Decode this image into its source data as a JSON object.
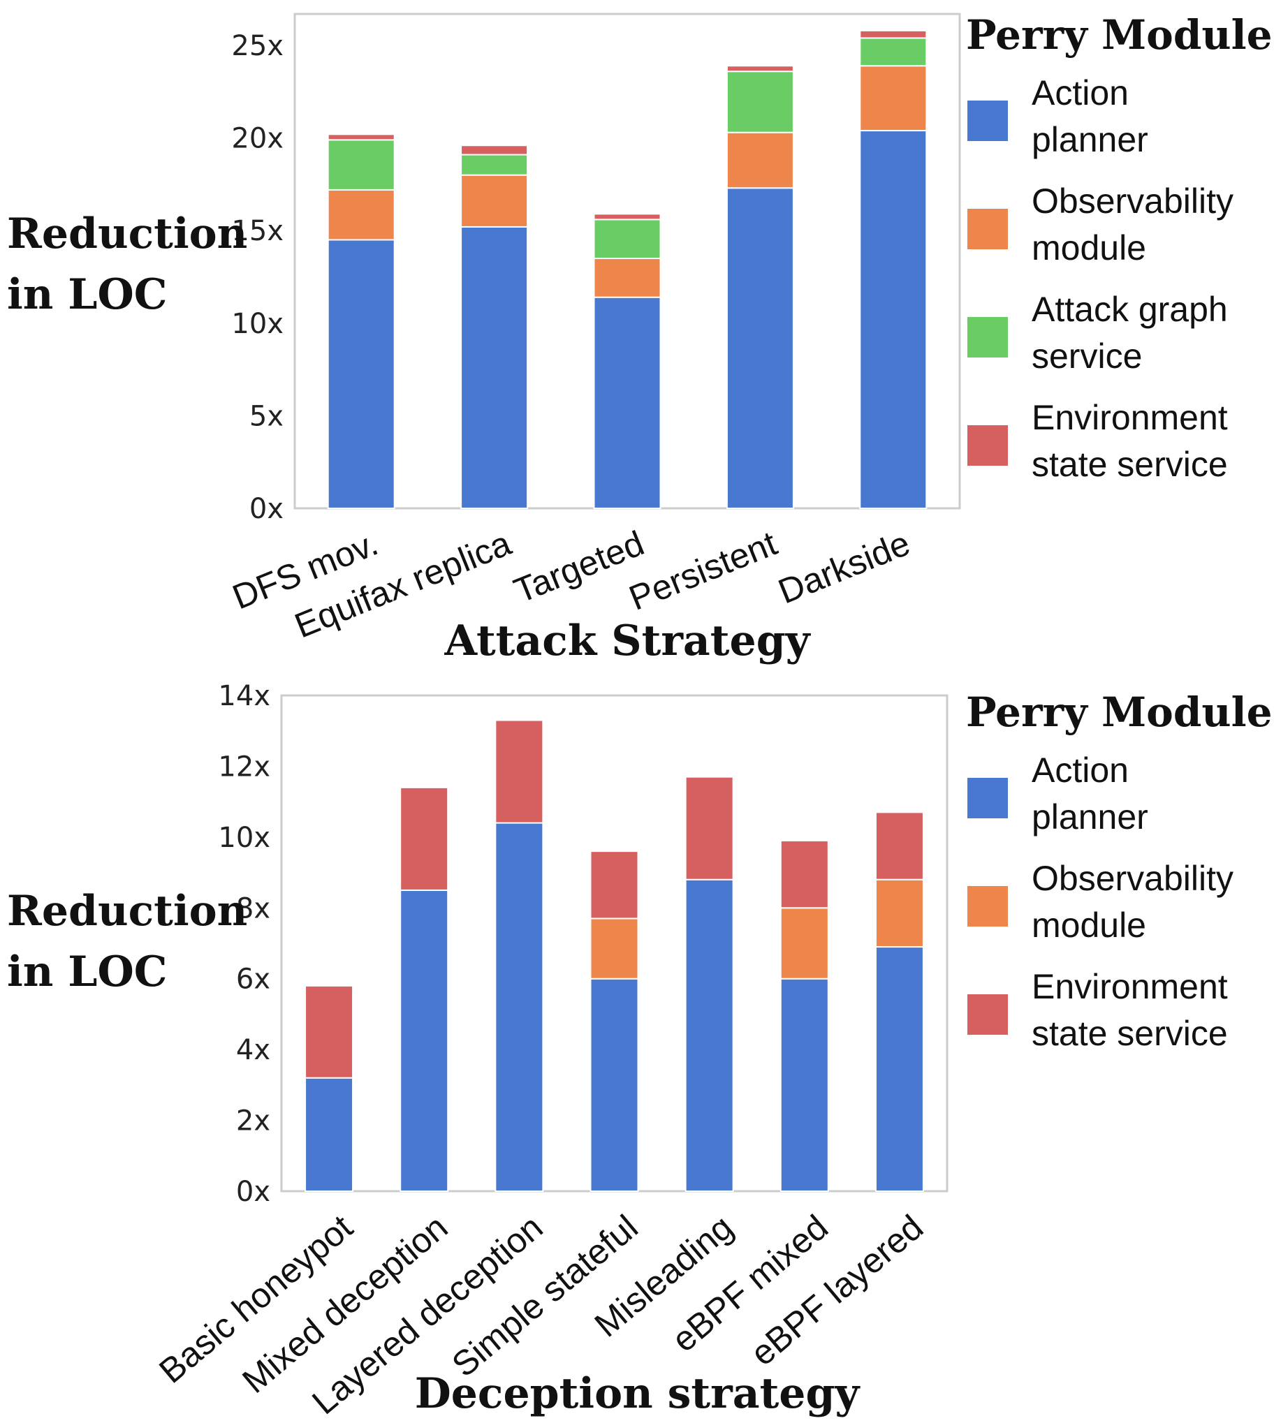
{
  "chart_data": [
    {
      "type": "bar",
      "stacked": true,
      "categories": [
        "DFS mov.",
        "Equifax replica",
        "Targeted",
        "Persistent",
        "Darkside"
      ],
      "series": [
        {
          "name": "Action planner",
          "color": "#4878cf",
          "values": [
            14.5,
            15.2,
            11.4,
            17.3,
            20.4
          ]
        },
        {
          "name": "Observability module",
          "color": "#ee854a",
          "values": [
            2.7,
            2.8,
            2.1,
            3.0,
            3.5
          ]
        },
        {
          "name": "Attack graph service",
          "color": "#6acc64",
          "values": [
            2.7,
            1.1,
            2.1,
            3.3,
            1.5
          ]
        },
        {
          "name": "Environment state service",
          "color": "#d65f5f",
          "values": [
            0.3,
            0.5,
            0.3,
            0.3,
            0.4
          ]
        }
      ],
      "yticks": [
        "0x",
        "5x",
        "10x",
        "15x",
        "20x",
        "25x"
      ],
      "ylim": [
        0,
        26.7
      ],
      "ylabel_lines": [
        "Reduction",
        "in LOC"
      ],
      "xlabel": "Attack Strategy",
      "legend_title": "Perry Module",
      "legend_items": [
        {
          "lines": [
            "Action",
            "planner"
          ],
          "color": "#4878cf"
        },
        {
          "lines": [
            "Observability",
            "module"
          ],
          "color": "#ee854a"
        },
        {
          "lines": [
            "Attack graph",
            "service"
          ],
          "color": "#6acc64"
        },
        {
          "lines": [
            "Environment",
            "state service"
          ],
          "color": "#d65f5f"
        }
      ],
      "legend_position": "right"
    },
    {
      "type": "bar",
      "stacked": true,
      "categories": [
        "Basic honeypot",
        "Mixed deception",
        "Layered deception",
        "Simple stateful",
        "Misleading",
        "eBPF mixed",
        "eBPF layered"
      ],
      "series": [
        {
          "name": "Action planner",
          "color": "#4878cf",
          "values": [
            3.2,
            8.5,
            10.4,
            6.0,
            8.8,
            6.0,
            6.9
          ]
        },
        {
          "name": "Observability module",
          "color": "#ee854a",
          "values": [
            0,
            0,
            0,
            1.7,
            0,
            2.0,
            1.9
          ]
        },
        {
          "name": "Environment state service",
          "color": "#d65f5f",
          "values": [
            2.6,
            2.9,
            2.9,
            1.9,
            2.9,
            1.9,
            1.9
          ]
        }
      ],
      "yticks": [
        "0x",
        "2x",
        "4x",
        "6x",
        "8x",
        "10x",
        "12x",
        "14x"
      ],
      "ylim": [
        0,
        14
      ],
      "ylabel_lines": [
        "Reduction",
        "in LOC"
      ],
      "xlabel": "Deception strategy",
      "legend_title": "Perry Module",
      "legend_items": [
        {
          "lines": [
            "Action",
            "planner"
          ],
          "color": "#4878cf"
        },
        {
          "lines": [
            "Observability",
            "module"
          ],
          "color": "#ee854a"
        },
        {
          "lines": [
            "Environment",
            "state service"
          ],
          "color": "#d65f5f"
        }
      ],
      "legend_position": "right"
    }
  ]
}
